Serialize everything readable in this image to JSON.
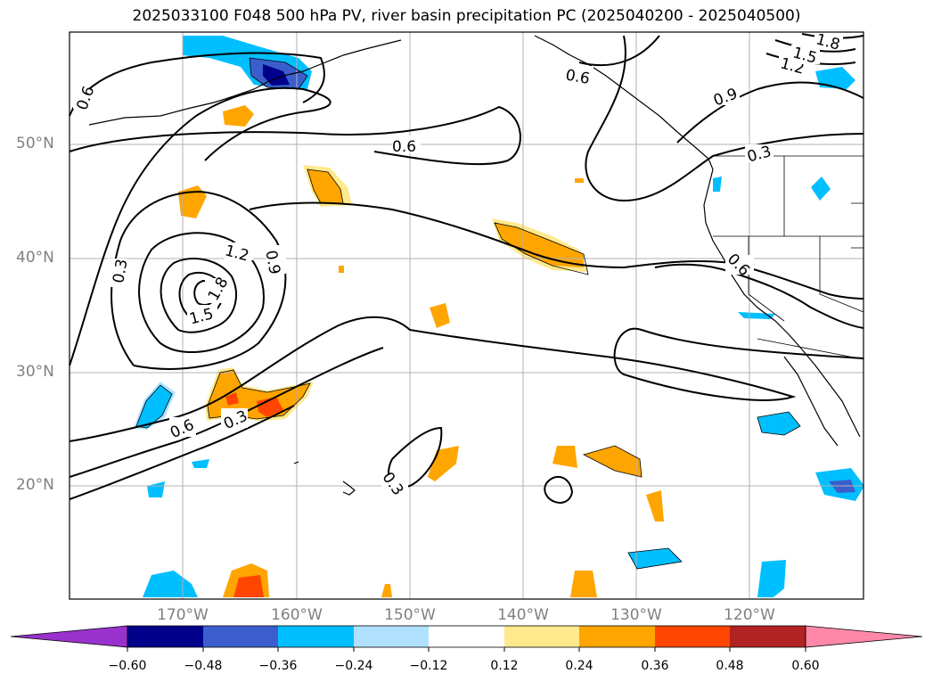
{
  "title": "2025033100 F048 500 hPa PV, river basin precipitation PC (2025040200 - 2025040500)",
  "lat_labels": [
    "50°N",
    "40°N",
    "30°N",
    "20°N"
  ],
  "lon_labels": [
    "170°W",
    "160°W",
    "150°W",
    "140°W",
    "130°W",
    "120°W"
  ],
  "contour_labels": [
    "0.6",
    "0.6",
    "0.3",
    "1.2",
    "0.9",
    "1.8",
    "1.5",
    "0.6",
    "0.3",
    "0.3",
    "0.6",
    "0.9",
    "0.3",
    "1.2",
    "1.5",
    "1.8",
    "0.6"
  ],
  "colorbar": {
    "ticks": [
      "−0.60",
      "−0.48",
      "−0.36",
      "−0.24",
      "−0.12",
      "0.12",
      "0.24",
      "0.36",
      "0.48",
      "0.60"
    ],
    "colors": [
      "#9932cc",
      "#00008b",
      "#3a5fcd",
      "#00bfff",
      "#b0e2ff",
      "#ffffff",
      "#ffe98c",
      "#ffa500",
      "#ff4500",
      "#b22222",
      "#ff88aa"
    ]
  }
}
